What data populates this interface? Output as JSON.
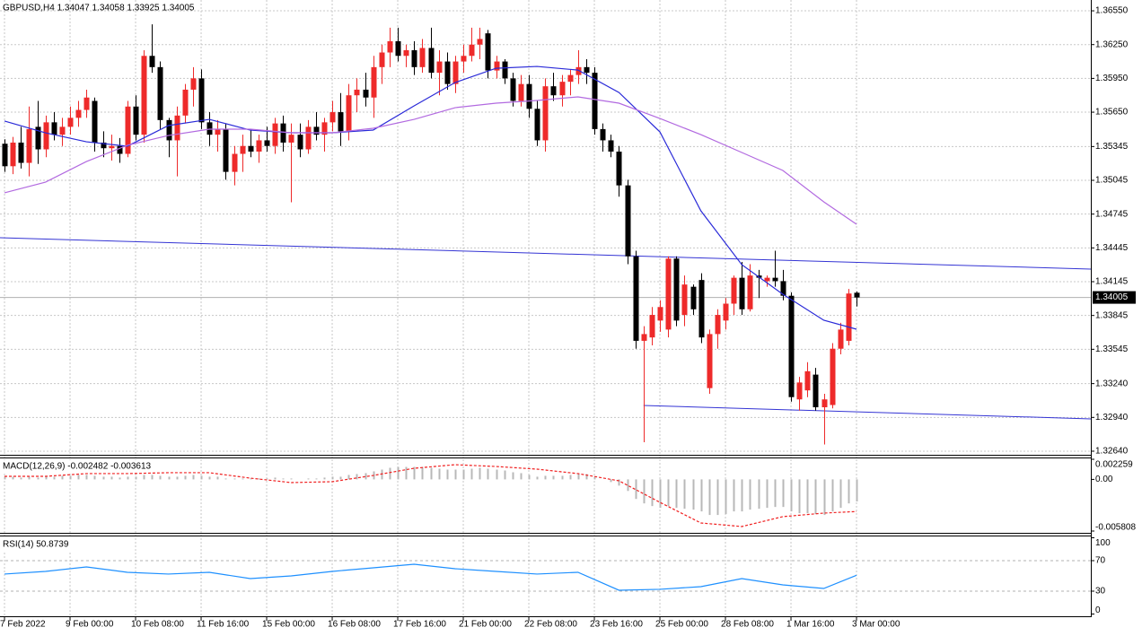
{
  "chart_data": [
    {
      "type": "candlestick",
      "title": "GBPUSD,H4  1.34047 1.34058 1.33925 1.34005",
      "up_color": "#ee2a2a",
      "down_color": "#000000",
      "open": [
        1.3537,
        1.3517,
        1.3538,
        1.352,
        1.3552,
        1.3532,
        1.3556,
        1.3545,
        1.3552,
        1.356,
        1.3567,
        1.3575,
        1.3538,
        1.3533,
        1.3535,
        1.3528,
        1.357,
        1.3545,
        1.3615,
        1.3605,
        1.3558,
        1.354,
        1.3562,
        1.3585,
        1.3595,
        1.3556,
        1.3545,
        1.355,
        1.3512,
        1.3528,
        1.3535,
        1.353,
        1.354,
        1.3535,
        1.3555,
        1.3538,
        1.3545,
        1.3532,
        1.3552,
        1.3545,
        1.3556,
        1.3565,
        1.3548,
        1.358,
        1.3585,
        1.3578,
        1.3605,
        1.3618,
        1.3628,
        1.3615,
        1.362,
        1.3605,
        1.3622,
        1.36,
        1.361,
        1.359,
        1.361,
        1.3615,
        1.3625,
        1.3635,
        1.3602,
        1.361,
        1.3595,
        1.3575,
        1.359,
        1.3568,
        1.354,
        1.3588,
        1.358,
        1.3592,
        1.3598,
        1.3605,
        1.36,
        1.355,
        1.354,
        1.353,
        1.35,
        1.3437,
        1.3362,
        1.3365,
        1.338,
        1.3372,
        1.3435,
        1.3385,
        1.341,
        1.3416,
        1.332,
        1.3368,
        1.338,
        1.3395,
        1.3418,
        1.339,
        1.342,
        1.3415,
        1.3418,
        1.3415,
        1.3402,
        1.331,
        1.3318,
        1.3332,
        1.3303,
        1.3305,
        1.3355,
        1.3362,
        1.34047
      ],
      "high": [
        1.3541,
        1.3543,
        1.3552,
        1.357,
        1.3575,
        1.3562,
        1.3565,
        1.356,
        1.357,
        1.3575,
        1.3585,
        1.3578,
        1.3548,
        1.3545,
        1.3542,
        1.3575,
        1.358,
        1.362,
        1.3643,
        1.361,
        1.356,
        1.357,
        1.359,
        1.3605,
        1.3603,
        1.3565,
        1.3558,
        1.3555,
        1.3535,
        1.3545,
        1.355,
        1.3545,
        1.3552,
        1.356,
        1.3562,
        1.3555,
        1.3555,
        1.3558,
        1.3565,
        1.356,
        1.3575,
        1.3582,
        1.359,
        1.3595,
        1.36,
        1.3615,
        1.3625,
        1.364,
        1.364,
        1.3625,
        1.3628,
        1.363,
        1.364,
        1.362,
        1.3618,
        1.3615,
        1.3625,
        1.364,
        1.364,
        1.3638,
        1.3615,
        1.3612,
        1.36,
        1.3598,
        1.3598,
        1.3575,
        1.3595,
        1.36,
        1.3598,
        1.3603,
        1.362,
        1.3612,
        1.3605,
        1.3555,
        1.3545,
        1.3535,
        1.3505,
        1.3442,
        1.3375,
        1.3392,
        1.3398,
        1.3437,
        1.3437,
        1.342,
        1.3412,
        1.3422,
        1.3372,
        1.339,
        1.34,
        1.342,
        1.3432,
        1.343,
        1.3425,
        1.342,
        1.3442,
        1.3425,
        1.3405,
        1.333,
        1.3343,
        1.3338,
        1.3315,
        1.336,
        1.3378,
        1.3408,
        1.34058
      ],
      "low": [
        1.3512,
        1.351,
        1.3515,
        1.3508,
        1.3519,
        1.3525,
        1.354,
        1.3535,
        1.3545,
        1.3552,
        1.356,
        1.353,
        1.3525,
        1.3522,
        1.352,
        1.3525,
        1.354,
        1.3538,
        1.36,
        1.355,
        1.3525,
        1.3508,
        1.3555,
        1.357,
        1.355,
        1.3535,
        1.353,
        1.3505,
        1.35,
        1.3512,
        1.3525,
        1.352,
        1.353,
        1.3528,
        1.353,
        1.3485,
        1.3525,
        1.3528,
        1.354,
        1.353,
        1.3548,
        1.3535,
        1.354,
        1.3565,
        1.357,
        1.356,
        1.359,
        1.3605,
        1.361,
        1.3605,
        1.3598,
        1.36,
        1.3595,
        1.358,
        1.3585,
        1.3582,
        1.36,
        1.361,
        1.3612,
        1.3595,
        1.3595,
        1.359,
        1.357,
        1.357,
        1.356,
        1.3535,
        1.353,
        1.3575,
        1.357,
        1.358,
        1.359,
        1.359,
        1.3545,
        1.353,
        1.3525,
        1.349,
        1.343,
        1.3355,
        1.3272,
        1.3358,
        1.337,
        1.3365,
        1.3375,
        1.3375,
        1.3385,
        1.336,
        1.3315,
        1.3355,
        1.3372,
        1.3385,
        1.3385,
        1.3388,
        1.34,
        1.341,
        1.341,
        1.3398,
        1.3308,
        1.33,
        1.3312,
        1.33,
        1.327,
        1.3302,
        1.335,
        1.3358,
        1.33925
      ],
      "close": [
        1.3517,
        1.3538,
        1.352,
        1.355,
        1.3532,
        1.3556,
        1.3545,
        1.3552,
        1.356,
        1.3567,
        1.3578,
        1.3538,
        1.3533,
        1.3535,
        1.3528,
        1.357,
        1.3545,
        1.3615,
        1.3605,
        1.3558,
        1.354,
        1.3562,
        1.3585,
        1.3595,
        1.3556,
        1.3545,
        1.355,
        1.3512,
        1.3528,
        1.3535,
        1.353,
        1.354,
        1.3535,
        1.3555,
        1.3538,
        1.3545,
        1.3532,
        1.3552,
        1.3545,
        1.3556,
        1.3565,
        1.3548,
        1.358,
        1.3585,
        1.3578,
        1.3605,
        1.3618,
        1.3628,
        1.3615,
        1.362,
        1.3605,
        1.3622,
        1.36,
        1.361,
        1.359,
        1.361,
        1.3615,
        1.3625,
        1.363,
        1.3602,
        1.361,
        1.3595,
        1.3575,
        1.359,
        1.3568,
        1.354,
        1.3588,
        1.358,
        1.3592,
        1.3598,
        1.3605,
        1.36,
        1.355,
        1.354,
        1.353,
        1.35,
        1.3437,
        1.3362,
        1.3368,
        1.3385,
        1.3392,
        1.3435,
        1.338,
        1.3412,
        1.339,
        1.3365,
        1.3368,
        1.3385,
        1.3395,
        1.3418,
        1.339,
        1.342,
        1.3418,
        1.3418,
        1.3415,
        1.3402,
        1.3312,
        1.3325,
        1.3335,
        1.3303,
        1.331,
        1.3355,
        1.3372,
        1.3404,
        1.34005
      ],
      "overlays": [
        {
          "color": "#2a2ad8",
          "x": [
            0,
            5,
            10,
            15,
            20,
            25,
            30,
            35,
            40,
            45,
            50,
            55,
            60,
            65,
            70,
            75,
            80,
            85,
            90,
            95,
            100,
            104
          ],
          "values": [
            1.35571,
            1.35467,
            1.35387,
            1.35348,
            1.35531,
            1.35586,
            1.35491,
            1.35467,
            1.35467,
            1.35491,
            1.35706,
            1.35913,
            1.3604,
            1.36056,
            1.36024,
            1.35825,
            1.35475,
            1.34774,
            1.34296,
            1.34034,
            1.33803,
            1.33723
          ]
        },
        {
          "color": "#b26ae0",
          "x": [
            0,
            5,
            10,
            15,
            20,
            25,
            30,
            35,
            40,
            45,
            50,
            55,
            60,
            65,
            70,
            75,
            80,
            85,
            90,
            95,
            100,
            104
          ],
          "values": [
            1.34934,
            1.35029,
            1.35212,
            1.35356,
            1.35443,
            1.35499,
            1.35499,
            1.35467,
            1.35467,
            1.35507,
            1.35586,
            1.3569,
            1.3573,
            1.35754,
            1.35786,
            1.3573,
            1.35594,
            1.35451,
            1.35292,
            1.35133,
            1.34854,
            1.34655
          ]
        }
      ],
      "trendlines": [
        {
          "color": "#3434d4",
          "x": [
            -0.55,
            132.6
          ],
          "values": [
            1.34535,
            1.34257
          ]
        },
        {
          "color": "#3434d4",
          "x": [
            78,
            132.6
          ],
          "values": [
            1.33046,
            1.32927
          ]
        }
      ],
      "current_price": 1.34005,
      "xlim": [
        -0.55,
        132.6
      ],
      "ylim": [
        1.32608,
        1.36646
      ],
      "yticks": [
        {
          "value": 1.3655,
          "label": "1.36550"
        },
        {
          "value": 1.3625,
          "label": "1.36250"
        },
        {
          "value": 1.3595,
          "label": "1.35950"
        },
        {
          "value": 1.3565,
          "label": "1.35650"
        },
        1.35345,
        1.35045,
        1.34745,
        1.34445,
        1.34145,
        1.33845,
        1.33545,
        {
          "value": 1.3324,
          "label": "1.33240"
        },
        {
          "value": 1.3294,
          "label": "1.32940"
        },
        {
          "value": 1.3264,
          "label": "1.32640"
        }
      ],
      "grid": true
    },
    {
      "type": "macd",
      "label": "MACD(12,26,9) -0.002482 -0.003613",
      "histogram": {
        "color": "#b8b8b8",
        "values": [
          0.0003,
          0.0003,
          0.0002,
          0.0003,
          0.0002,
          0.0003,
          0.0003,
          0.0004,
          0.0004,
          0.0005,
          0.0005,
          0.0004,
          0.0003,
          0.0003,
          0.0002,
          0.0003,
          0.0003,
          0.0005,
          0.0005,
          0.0004,
          0.0003,
          0.0003,
          0.0004,
          0.0005,
          0.0004,
          0.0003,
          0.0003,
          0.0001,
          0.0001,
          0.0001,
          0.0001,
          0.0001,
          0.0001,
          0.0002,
          0.0001,
          0.0001,
          0.0,
          0.0001,
          0.0001,
          0.0002,
          0.0003,
          0.0003,
          0.0005,
          0.0006,
          0.0007,
          0.0009,
          0.0011,
          0.0013,
          0.0014,
          0.0014,
          0.0014,
          0.0014,
          0.0013,
          0.0012,
          0.0011,
          0.0011,
          0.0011,
          0.0012,
          0.0013,
          0.0012,
          0.0011,
          0.001,
          0.0008,
          0.0007,
          0.0005,
          0.0003,
          0.0004,
          0.0004,
          0.0004,
          0.0005,
          0.0006,
          0.0006,
          0.0003,
          0.0,
          -0.0003,
          -0.0007,
          -0.0013,
          -0.0022,
          -0.0027,
          -0.003,
          -0.0032,
          -0.003,
          -0.0032,
          -0.0033,
          -0.0034,
          -0.0036,
          -0.004,
          -0.004,
          -0.0039,
          -0.0036,
          -0.0036,
          -0.0034,
          -0.0033,
          -0.0032,
          -0.0031,
          -0.0031,
          -0.0036,
          -0.0038,
          -0.0038,
          -0.0039,
          -0.004,
          -0.0036,
          -0.0032,
          -0.0027,
          -0.002482
        ]
      },
      "signal": {
        "color": "#f02020",
        "x": [
          0,
          5,
          10,
          15,
          20,
          25,
          30,
          35,
          40,
          45,
          50,
          55,
          60,
          65,
          70,
          75,
          80,
          85,
          90,
          95,
          100,
          104
        ],
        "values": [
          0.00034,
          0.00034,
          0.00065,
          0.00065,
          0.00075,
          0.00075,
          0.00014,
          -0.00036,
          -0.00026,
          0.00044,
          0.00125,
          0.00165,
          0.00145,
          0.00115,
          0.00065,
          -0.00016,
          -0.00258,
          -0.0049,
          -0.0053,
          -0.00419,
          -0.00379,
          -0.003613
        ]
      },
      "xlim": [
        -0.55,
        132.6
      ],
      "ylim": [
        -0.005808,
        0.002259
      ],
      "yticks": [
        0.002259,
        {
          "value": 0,
          "label": "0.00"
        },
        -0.005808
      ]
    },
    {
      "type": "rsi",
      "label": "RSI(14) 50.8739",
      "line": {
        "color": "#1e90ff",
        "x": [
          0,
          5,
          10,
          15,
          20,
          25,
          30,
          35,
          40,
          45,
          50,
          55,
          60,
          65,
          70,
          75,
          80,
          85,
          90,
          95,
          100,
          104
        ],
        "values": [
          52.4,
          55.9,
          61.8,
          54.7,
          52.4,
          54.7,
          46.5,
          50.0,
          55.9,
          60.6,
          65.3,
          59.4,
          55.9,
          52.4,
          54.7,
          31.2,
          32.4,
          35.9,
          46.5,
          38.2,
          33.5,
          50.8739
        ]
      },
      "levels": [
        70,
        30
      ],
      "xlim": [
        -0.55,
        132.6
      ],
      "ylim": [
        0,
        100
      ],
      "yticks": [
        100,
        70,
        30,
        0
      ],
      "xticks": [
        {
          "value": 0,
          "label": "7 Feb 2022"
        },
        {
          "value": 8,
          "label": "9 Feb 00:00"
        },
        {
          "value": 16,
          "label": "10 Feb 08:00"
        },
        {
          "value": 24,
          "label": "11 Feb 16:00"
        },
        {
          "value": 32,
          "label": "15 Feb 00:00"
        },
        {
          "value": 40,
          "label": "16 Feb 08:00"
        },
        {
          "value": 48,
          "label": "17 Feb 16:00"
        },
        {
          "value": 56,
          "label": "21 Feb 00:00"
        },
        {
          "value": 64,
          "label": "22 Feb 08:00"
        },
        {
          "value": 72,
          "label": "23 Feb 16:00"
        },
        {
          "value": 80,
          "label": "25 Feb 00:00"
        },
        {
          "value": 88,
          "label": "28 Feb 08:00"
        },
        {
          "value": 96,
          "label": "1 Mar 16:00"
        },
        {
          "value": 104,
          "label": "3 Mar 00:00"
        }
      ]
    }
  ]
}
